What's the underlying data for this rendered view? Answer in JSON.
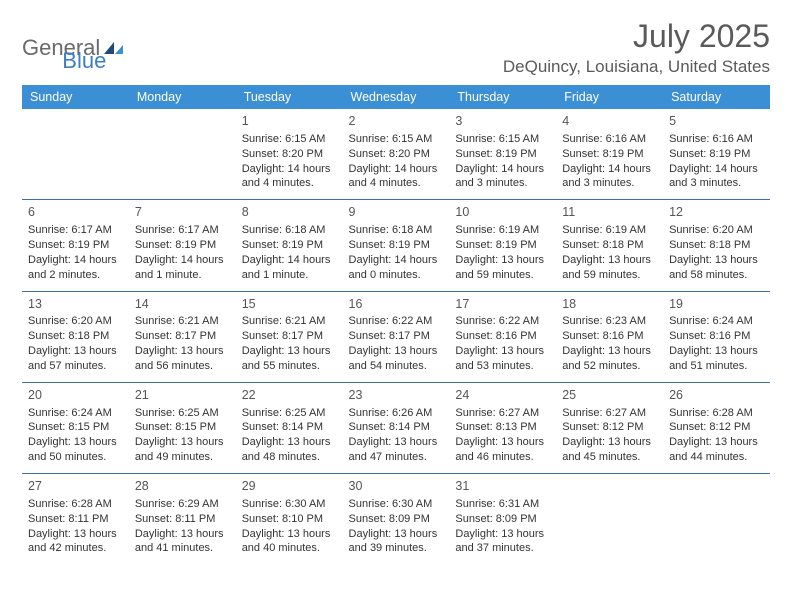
{
  "brand": {
    "general": "General",
    "blue": "Blue"
  },
  "title": "July 2025",
  "location": "DeQuincy, Louisiana, United States",
  "colors": {
    "header_bg": "#3b8fd4",
    "header_text": "#ffffff",
    "row_border": "#3b6fa4",
    "body_text": "#333333",
    "title_text": "#5a5a5a",
    "logo_gray": "#6a6a6a",
    "logo_blue": "#3b7fc4",
    "background": "#ffffff"
  },
  "day_labels": [
    "Sunday",
    "Monday",
    "Tuesday",
    "Wednesday",
    "Thursday",
    "Friday",
    "Saturday"
  ],
  "weeks": [
    [
      null,
      null,
      {
        "n": "1",
        "sunrise": "Sunrise: 6:15 AM",
        "sunset": "Sunset: 8:20 PM",
        "daylight": "Daylight: 14 hours and 4 minutes."
      },
      {
        "n": "2",
        "sunrise": "Sunrise: 6:15 AM",
        "sunset": "Sunset: 8:20 PM",
        "daylight": "Daylight: 14 hours and 4 minutes."
      },
      {
        "n": "3",
        "sunrise": "Sunrise: 6:15 AM",
        "sunset": "Sunset: 8:19 PM",
        "daylight": "Daylight: 14 hours and 3 minutes."
      },
      {
        "n": "4",
        "sunrise": "Sunrise: 6:16 AM",
        "sunset": "Sunset: 8:19 PM",
        "daylight": "Daylight: 14 hours and 3 minutes."
      },
      {
        "n": "5",
        "sunrise": "Sunrise: 6:16 AM",
        "sunset": "Sunset: 8:19 PM",
        "daylight": "Daylight: 14 hours and 3 minutes."
      }
    ],
    [
      {
        "n": "6",
        "sunrise": "Sunrise: 6:17 AM",
        "sunset": "Sunset: 8:19 PM",
        "daylight": "Daylight: 14 hours and 2 minutes."
      },
      {
        "n": "7",
        "sunrise": "Sunrise: 6:17 AM",
        "sunset": "Sunset: 8:19 PM",
        "daylight": "Daylight: 14 hours and 1 minute."
      },
      {
        "n": "8",
        "sunrise": "Sunrise: 6:18 AM",
        "sunset": "Sunset: 8:19 PM",
        "daylight": "Daylight: 14 hours and 1 minute."
      },
      {
        "n": "9",
        "sunrise": "Sunrise: 6:18 AM",
        "sunset": "Sunset: 8:19 PM",
        "daylight": "Daylight: 14 hours and 0 minutes."
      },
      {
        "n": "10",
        "sunrise": "Sunrise: 6:19 AM",
        "sunset": "Sunset: 8:19 PM",
        "daylight": "Daylight: 13 hours and 59 minutes."
      },
      {
        "n": "11",
        "sunrise": "Sunrise: 6:19 AM",
        "sunset": "Sunset: 8:18 PM",
        "daylight": "Daylight: 13 hours and 59 minutes."
      },
      {
        "n": "12",
        "sunrise": "Sunrise: 6:20 AM",
        "sunset": "Sunset: 8:18 PM",
        "daylight": "Daylight: 13 hours and 58 minutes."
      }
    ],
    [
      {
        "n": "13",
        "sunrise": "Sunrise: 6:20 AM",
        "sunset": "Sunset: 8:18 PM",
        "daylight": "Daylight: 13 hours and 57 minutes."
      },
      {
        "n": "14",
        "sunrise": "Sunrise: 6:21 AM",
        "sunset": "Sunset: 8:17 PM",
        "daylight": "Daylight: 13 hours and 56 minutes."
      },
      {
        "n": "15",
        "sunrise": "Sunrise: 6:21 AM",
        "sunset": "Sunset: 8:17 PM",
        "daylight": "Daylight: 13 hours and 55 minutes."
      },
      {
        "n": "16",
        "sunrise": "Sunrise: 6:22 AM",
        "sunset": "Sunset: 8:17 PM",
        "daylight": "Daylight: 13 hours and 54 minutes."
      },
      {
        "n": "17",
        "sunrise": "Sunrise: 6:22 AM",
        "sunset": "Sunset: 8:16 PM",
        "daylight": "Daylight: 13 hours and 53 minutes."
      },
      {
        "n": "18",
        "sunrise": "Sunrise: 6:23 AM",
        "sunset": "Sunset: 8:16 PM",
        "daylight": "Daylight: 13 hours and 52 minutes."
      },
      {
        "n": "19",
        "sunrise": "Sunrise: 6:24 AM",
        "sunset": "Sunset: 8:16 PM",
        "daylight": "Daylight: 13 hours and 51 minutes."
      }
    ],
    [
      {
        "n": "20",
        "sunrise": "Sunrise: 6:24 AM",
        "sunset": "Sunset: 8:15 PM",
        "daylight": "Daylight: 13 hours and 50 minutes."
      },
      {
        "n": "21",
        "sunrise": "Sunrise: 6:25 AM",
        "sunset": "Sunset: 8:15 PM",
        "daylight": "Daylight: 13 hours and 49 minutes."
      },
      {
        "n": "22",
        "sunrise": "Sunrise: 6:25 AM",
        "sunset": "Sunset: 8:14 PM",
        "daylight": "Daylight: 13 hours and 48 minutes."
      },
      {
        "n": "23",
        "sunrise": "Sunrise: 6:26 AM",
        "sunset": "Sunset: 8:14 PM",
        "daylight": "Daylight: 13 hours and 47 minutes."
      },
      {
        "n": "24",
        "sunrise": "Sunrise: 6:27 AM",
        "sunset": "Sunset: 8:13 PM",
        "daylight": "Daylight: 13 hours and 46 minutes."
      },
      {
        "n": "25",
        "sunrise": "Sunrise: 6:27 AM",
        "sunset": "Sunset: 8:12 PM",
        "daylight": "Daylight: 13 hours and 45 minutes."
      },
      {
        "n": "26",
        "sunrise": "Sunrise: 6:28 AM",
        "sunset": "Sunset: 8:12 PM",
        "daylight": "Daylight: 13 hours and 44 minutes."
      }
    ],
    [
      {
        "n": "27",
        "sunrise": "Sunrise: 6:28 AM",
        "sunset": "Sunset: 8:11 PM",
        "daylight": "Daylight: 13 hours and 42 minutes."
      },
      {
        "n": "28",
        "sunrise": "Sunrise: 6:29 AM",
        "sunset": "Sunset: 8:11 PM",
        "daylight": "Daylight: 13 hours and 41 minutes."
      },
      {
        "n": "29",
        "sunrise": "Sunrise: 6:30 AM",
        "sunset": "Sunset: 8:10 PM",
        "daylight": "Daylight: 13 hours and 40 minutes."
      },
      {
        "n": "30",
        "sunrise": "Sunrise: 6:30 AM",
        "sunset": "Sunset: 8:09 PM",
        "daylight": "Daylight: 13 hours and 39 minutes."
      },
      {
        "n": "31",
        "sunrise": "Sunrise: 6:31 AM",
        "sunset": "Sunset: 8:09 PM",
        "daylight": "Daylight: 13 hours and 37 minutes."
      },
      null,
      null
    ]
  ]
}
